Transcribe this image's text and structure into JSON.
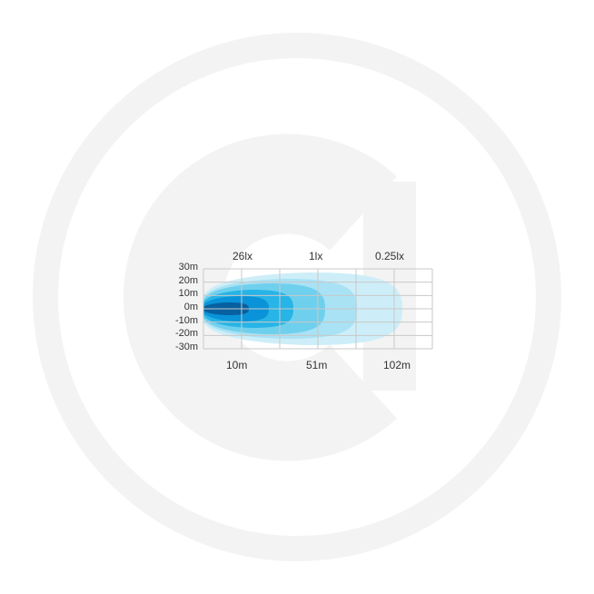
{
  "diagram": {
    "lux_labels": [
      "26lx",
      "1lx",
      "0.25lx"
    ],
    "y_labels": [
      "30m",
      "20m",
      "10m",
      "0m",
      "-10m",
      "-20m",
      "-30m"
    ],
    "x_labels": [
      "10m",
      "51m",
      "102m"
    ],
    "colors": {
      "grid": "#c8c8c8",
      "zones": [
        "#cdeef8",
        "#a9e2f4",
        "#6fd0ee",
        "#27b4e6",
        "#0a93d8",
        "#07609f"
      ]
    }
  }
}
